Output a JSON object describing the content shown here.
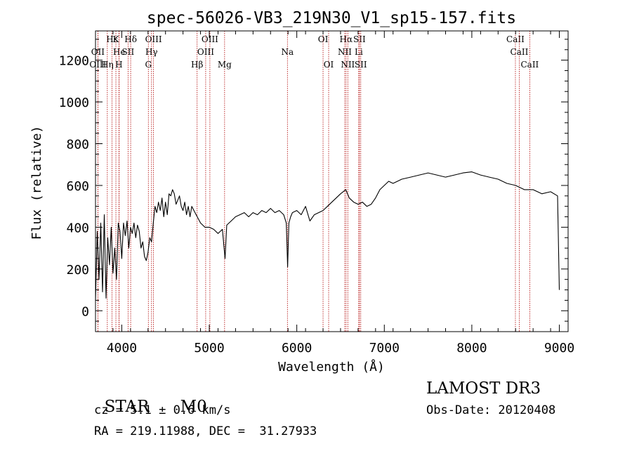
{
  "chart_data": {
    "type": "line",
    "title": "spec-56026-VB3_219N30_V1_sp15-157.fits",
    "xlabel": "Wavelength (Å)",
    "ylabel": "Flux (relative)",
    "xlim": [
      3700,
      9100
    ],
    "ylim": [
      -100,
      1340
    ],
    "x_ticks": [
      4000,
      5000,
      6000,
      7000,
      8000,
      9000
    ],
    "y_ticks": [
      0,
      200,
      400,
      600,
      800,
      1000,
      1200
    ],
    "series": [
      {
        "name": "spectrum",
        "x": [
          3700,
          3720,
          3740,
          3760,
          3780,
          3800,
          3820,
          3840,
          3860,
          3880,
          3900,
          3920,
          3940,
          3960,
          3980,
          4000,
          4020,
          4040,
          4060,
          4080,
          4100,
          4120,
          4140,
          4160,
          4180,
          4200,
          4220,
          4240,
          4260,
          4280,
          4300,
          4320,
          4340,
          4360,
          4380,
          4400,
          4420,
          4440,
          4460,
          4480,
          4500,
          4520,
          4540,
          4560,
          4580,
          4600,
          4620,
          4640,
          4660,
          4680,
          4700,
          4720,
          4740,
          4760,
          4780,
          4800,
          4850,
          4900,
          4950,
          5000,
          5050,
          5100,
          5150,
          5180,
          5200,
          5250,
          5300,
          5350,
          5400,
          5450,
          5500,
          5550,
          5600,
          5650,
          5700,
          5750,
          5800,
          5850,
          5880,
          5895,
          5910,
          5930,
          5950,
          6000,
          6050,
          6100,
          6150,
          6200,
          6250,
          6300,
          6350,
          6400,
          6450,
          6500,
          6560,
          6600,
          6650,
          6700,
          6750,
          6800,
          6850,
          6900,
          6950,
          7000,
          7050,
          7100,
          7150,
          7200,
          7300,
          7400,
          7500,
          7600,
          7700,
          7800,
          7900,
          8000,
          8100,
          8200,
          8300,
          8400,
          8500,
          8600,
          8700,
          8800,
          8900,
          8980,
          9000
        ],
        "y": [
          50,
          380,
          150,
          420,
          90,
          460,
          60,
          350,
          220,
          400,
          180,
          300,
          150,
          420,
          380,
          250,
          420,
          360,
          430,
          300,
          400,
          370,
          420,
          350,
          410,
          380,
          300,
          330,
          260,
          240,
          280,
          350,
          330,
          420,
          500,
          470,
          520,
          480,
          540,
          450,
          520,
          460,
          560,
          550,
          580,
          560,
          510,
          530,
          550,
          500,
          480,
          520,
          460,
          500,
          450,
          500,
          460,
          420,
          400,
          400,
          390,
          370,
          390,
          250,
          410,
          430,
          450,
          460,
          470,
          450,
          470,
          460,
          480,
          470,
          490,
          470,
          480,
          460,
          420,
          210,
          420,
          450,
          470,
          480,
          460,
          500,
          430,
          460,
          470,
          480,
          500,
          520,
          540,
          560,
          580,
          540,
          520,
          510,
          520,
          500,
          510,
          540,
          580,
          600,
          620,
          610,
          620,
          630,
          640,
          650,
          660,
          650,
          640,
          650,
          660,
          665,
          650,
          640,
          630,
          610,
          600,
          580,
          580,
          560,
          570,
          550,
          100
        ]
      }
    ],
    "lines": [
      {
        "label": "Hε",
        "wl": 3889,
        "row": 0
      },
      {
        "label": "K",
        "wl": 3933,
        "row": 0
      },
      {
        "label": "Hδ",
        "wl": 4102,
        "row": 0
      },
      {
        "label": "OIII",
        "wl": 4363,
        "row": 0
      },
      {
        "label": "OIII",
        "wl": 5007,
        "row": 0
      },
      {
        "label": "OI",
        "wl": 6300,
        "row": 0
      },
      {
        "label": "Hα",
        "wl": 6563,
        "row": 0
      },
      {
        "label": "SII",
        "wl": 6716,
        "row": 0
      },
      {
        "label": "CaII",
        "wl": 8498,
        "row": 0
      },
      {
        "label": "OII",
        "wl": 3727,
        "row": 1
      },
      {
        "label": "He",
        "wl": 3970,
        "row": 1
      },
      {
        "label": "SII",
        "wl": 4072,
        "row": 1
      },
      {
        "label": "Hγ",
        "wl": 4340,
        "row": 1
      },
      {
        "label": "OIII",
        "wl": 4959,
        "row": 1
      },
      {
        "label": "Na",
        "wl": 5893,
        "row": 1
      },
      {
        "label": "NII",
        "wl": 6548,
        "row": 1
      },
      {
        "label": "Li",
        "wl": 6708,
        "row": 1
      },
      {
        "label": "CaII",
        "wl": 8542,
        "row": 1
      },
      {
        "label": "OIII",
        "wl": 3727,
        "row": 2
      },
      {
        "label": "Hη",
        "wl": 3835,
        "row": 2
      },
      {
        "label": "H",
        "wl": 3968,
        "row": 2
      },
      {
        "label": "G",
        "wl": 4304,
        "row": 2
      },
      {
        "label": "Hβ",
        "wl": 4861,
        "row": 2
      },
      {
        "label": "Mg",
        "wl": 5175,
        "row": 2
      },
      {
        "label": "OI",
        "wl": 6364,
        "row": 2
      },
      {
        "label": "NII",
        "wl": 6583,
        "row": 2
      },
      {
        "label": "SII",
        "wl": 6731,
        "row": 2
      },
      {
        "label": "CaII",
        "wl": 8662,
        "row": 2
      }
    ],
    "line_color": "#b00000",
    "spectrum_color": "#000000"
  },
  "info": {
    "object": "STAR",
    "subclass": "M0",
    "cz": "cz = 5.1 ± 0.6 km/s",
    "radec": "RA = 219.11988, DEC =  31.27933",
    "survey": "LAMOST DR3",
    "obsdate": "Obs-Date: 20120408"
  }
}
